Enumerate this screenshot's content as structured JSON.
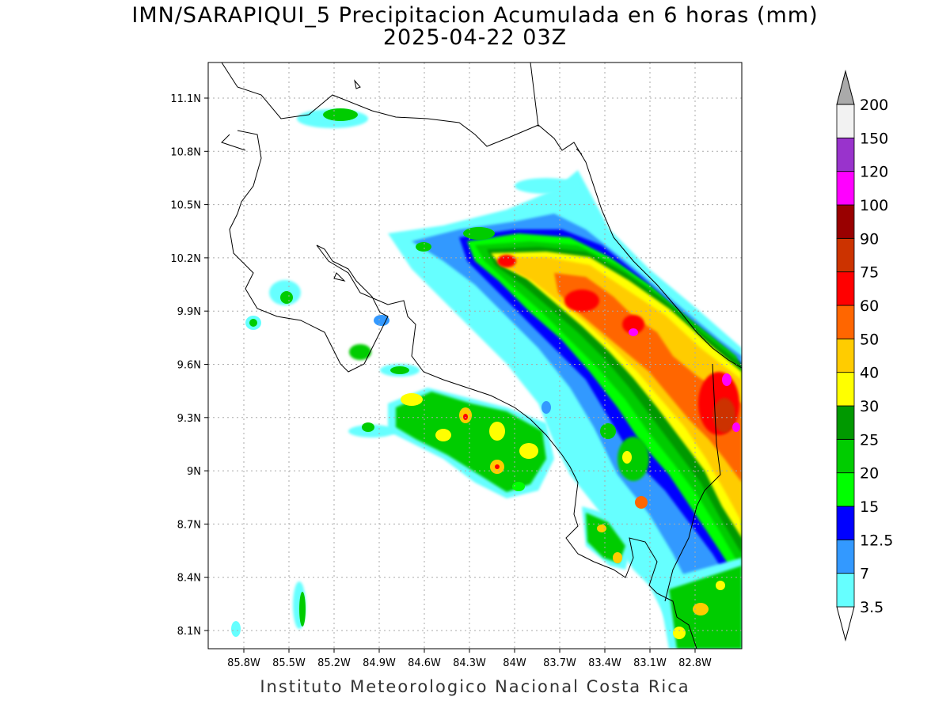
{
  "title_line1": "IMN/SARAPIQUI_5 Precipitacion Acumulada en 6 horas (mm)",
  "title_line2": "2025-04-22 03Z",
  "footer": "Instituto Meteorologico Nacional Costa Rica",
  "map": {
    "lon_ticks": [
      "85.8W",
      "85.5W",
      "85.2W",
      "84.9W",
      "84.6W",
      "84.3W",
      "84W",
      "83.7W",
      "83.4W",
      "83.1W",
      "82.8W"
    ],
    "lat_ticks": [
      "11.1N",
      "10.8N",
      "10.5N",
      "10.2N",
      "9.9N",
      "9.6N",
      "9.3N",
      "9N",
      "8.7N",
      "8.4N",
      "8.1N"
    ],
    "grid": "dotted"
  },
  "colorbar": {
    "labels": [
      "3.5",
      "7",
      "12.5",
      "15",
      "20",
      "25",
      "30",
      "40",
      "50",
      "60",
      "75",
      "90",
      "100",
      "120",
      "150",
      "200"
    ],
    "colors": [
      "#ffffff",
      "#66ffff",
      "#3399ff",
      "#0000ff",
      "#00ff00",
      "#00cc00",
      "#009900",
      "#ffff00",
      "#ffcc00",
      "#ff6600",
      "#ff0000",
      "#cc3300",
      "#990000",
      "#ff00ff",
      "#9933cc",
      "#f2f2f2",
      "#aaaaaa"
    ]
  }
}
